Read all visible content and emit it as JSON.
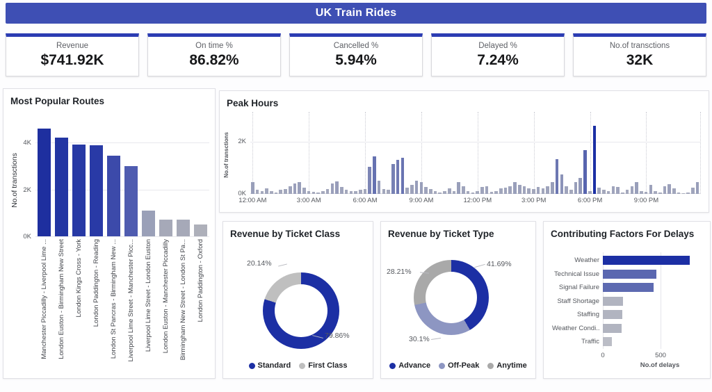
{
  "header": {
    "title": "UK Train Rides"
  },
  "colors": {
    "header_bg": "#3E4FB4",
    "card_accent": "#2B3CB3",
    "primary_blue": "#1C2FA4",
    "gray_slice": "#BFBFBF",
    "offpeak_blue": "#8D96C2",
    "anytime_gray": "#A9A9A9"
  },
  "kpis": [
    {
      "label": "Revenue",
      "value": "$741.92K"
    },
    {
      "label": "On time %",
      "value": "86.82%"
    },
    {
      "label": "Cancelled %",
      "value": "5.94%"
    },
    {
      "label": "Delayed %",
      "value": "7.24%"
    },
    {
      "label": "No.of transctions",
      "value": "32K"
    }
  ],
  "chart_data": [
    {
      "type": "bar",
      "title": "Most Popular Routes",
      "ylabel": "No.of transctions",
      "unit": "K",
      "categories": [
        "Manchester Piccadilly - Liverpool Lime ...",
        "London Euston - Birmingham New Street",
        "London Kings Cross - York",
        "London Paddington - Reading",
        "London St Pancras - Birmingham New ...",
        "Liverpool Lime Street - Manchester Picc...",
        "Liverpool Lime Street - London Euston",
        "London Euston - Manchester Piccadilly",
        "Birmingham New Street - London St Pa...",
        "London Paddington - Oxford"
      ],
      "values": [
        4.6,
        4.2,
        3.92,
        3.87,
        3.45,
        3.0,
        1.1,
        0.72,
        0.71,
        0.5
      ],
      "ylim": [
        0,
        4.8
      ],
      "yticks": [
        {
          "v": 0,
          "label": "0K"
        },
        {
          "v": 2,
          "label": "2K"
        },
        {
          "v": 4,
          "label": "4K"
        }
      ],
      "colors": [
        "#1E2F9F",
        "#2336A3",
        "#2739A5",
        "#293AA6",
        "#3C4AAA",
        "#4F5CB0",
        "#9AA0B8",
        "#A6A9B8",
        "#A6A9B8",
        "#AEB0BA"
      ]
    },
    {
      "type": "bar",
      "title": "Peak Hours",
      "ylabel": "No.of transctions",
      "unit": "K",
      "interval_minutes": 15,
      "values": [
        0.45,
        0.15,
        0.12,
        0.22,
        0.1,
        0.05,
        0.15,
        0.2,
        0.3,
        0.4,
        0.45,
        0.25,
        0.12,
        0.08,
        0.06,
        0.1,
        0.18,
        0.4,
        0.48,
        0.28,
        0.15,
        0.1,
        0.12,
        0.15,
        0.18,
        1.05,
        1.45,
        0.5,
        0.2,
        0.15,
        1.15,
        1.3,
        1.4,
        0.25,
        0.35,
        0.5,
        0.45,
        0.28,
        0.2,
        0.1,
        0.05,
        0.12,
        0.22,
        0.12,
        0.45,
        0.3,
        0.1,
        0.05,
        0.12,
        0.28,
        0.3,
        0.08,
        0.12,
        0.22,
        0.25,
        0.3,
        0.45,
        0.35,
        0.3,
        0.22,
        0.18,
        0.28,
        0.22,
        0.3,
        0.45,
        1.35,
        0.75,
        0.3,
        0.15,
        0.45,
        0.62,
        1.7,
        0.12,
        2.63,
        0.25,
        0.15,
        0.1,
        0.3,
        0.28,
        0.05,
        0.15,
        0.3,
        0.45,
        0.12,
        0.08,
        0.35,
        0.1,
        0.05,
        0.3,
        0.38,
        0.22,
        0.05,
        0.02,
        0.05,
        0.25,
        0.45
      ],
      "ylim": [
        0,
        3
      ],
      "yticks": [
        {
          "v": 0,
          "label": "0K"
        },
        {
          "v": 2,
          "label": "2K"
        }
      ],
      "xticks": [
        {
          "slot": 0,
          "label": "12:00 AM"
        },
        {
          "slot": 12,
          "label": "3:00 AM"
        },
        {
          "slot": 24,
          "label": "6:00 AM"
        },
        {
          "slot": 36,
          "label": "9:00 AM"
        },
        {
          "slot": 48,
          "label": "12:00 PM"
        },
        {
          "slot": 60,
          "label": "3:00 PM"
        },
        {
          "slot": 72,
          "label": "6:00 PM"
        },
        {
          "slot": 84,
          "label": "9:00 PM"
        }
      ],
      "color_low": "#A7ABBD",
      "color_high": "#1B2FA4"
    },
    {
      "type": "pie",
      "title": "Revenue by Ticket Class",
      "slices": [
        {
          "name": "Standard",
          "pct": 79.86,
          "label": "79.86%",
          "color": "#1C2FA4"
        },
        {
          "name": "First Class",
          "pct": 20.14,
          "label": "20.14%",
          "color": "#BFBFBF"
        }
      ],
      "legend_position": "bottom"
    },
    {
      "type": "pie",
      "title": "Revenue by Ticket Type",
      "slices": [
        {
          "name": "Advance",
          "pct": 41.69,
          "label": "41.69%",
          "color": "#1C2FA4"
        },
        {
          "name": "Off-Peak",
          "pct": 30.1,
          "label": "30.1%",
          "color": "#8D96C2"
        },
        {
          "name": "Anytime",
          "pct": 28.21,
          "label": "28.21%",
          "color": "#A9A9A9"
        }
      ],
      "legend_position": "bottom"
    },
    {
      "type": "bar",
      "orientation": "horizontal",
      "title": "Contributing Factors For Delays",
      "xlabel": "No.of delays",
      "categories": [
        "Weather",
        "Technical Issue",
        "Signal Failure",
        "Staff Shortage",
        "Staffing",
        "Weather Condi...",
        "Traffic"
      ],
      "values": [
        750,
        465,
        440,
        175,
        170,
        165,
        80
      ],
      "xlim": [
        0,
        900
      ],
      "xticks": [
        {
          "v": 0,
          "label": "0"
        },
        {
          "v": 500,
          "label": "500"
        }
      ],
      "colors": [
        "#1C2FA4",
        "#5A67B0",
        "#5D6AB1",
        "#B1B4C0",
        "#B1B4C0",
        "#B1B4C0",
        "#BBBDC6"
      ]
    }
  ]
}
